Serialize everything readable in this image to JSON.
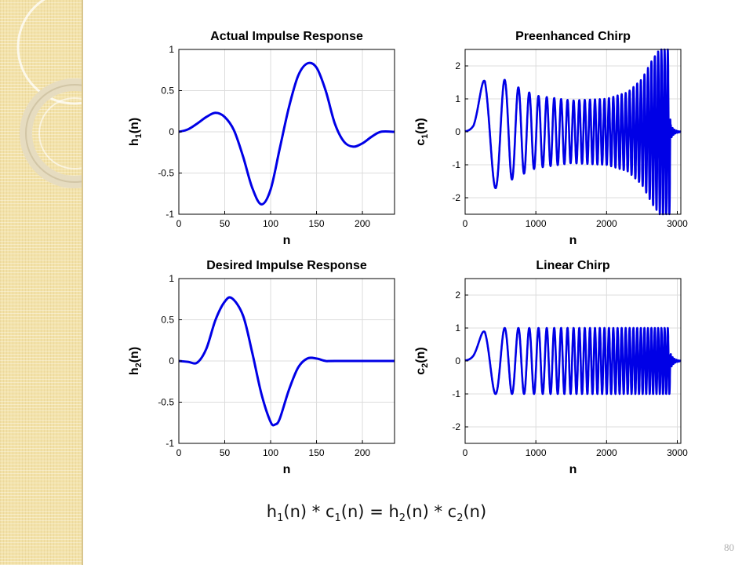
{
  "slide": {
    "page_number": "80"
  },
  "formula": {
    "h1": "h",
    "s1": "1",
    "c1": "c",
    "s2": "1",
    "h2": "h",
    "s3": "2",
    "c2": "c",
    "s4": "2",
    "t_n": "(n)",
    "op_conv": "*",
    "op_eq": "="
  },
  "chart_data": [
    {
      "type": "line",
      "title": "Actual Impulse Response",
      "xlabel": "n",
      "ylabel": "h1(n)",
      "ylabel_base": "h",
      "ylabel_sub": "1",
      "ylabel_tail": "(n)",
      "xlim": [
        0,
        235
      ],
      "ylim": [
        -1,
        1
      ],
      "xticks": [
        0,
        50,
        100,
        150,
        200
      ],
      "yticks": [
        -1,
        -0.5,
        0,
        0.5,
        1
      ],
      "xtick_labels": [
        "0",
        "50",
        "100",
        "150",
        "200"
      ],
      "ytick_labels": [
        "-1",
        "-0.5",
        "0",
        "0.5",
        "1"
      ],
      "grid": true,
      "color": "#0000e6",
      "series": [
        {
          "x": [
            0,
            10,
            20,
            30,
            40,
            50,
            60,
            70,
            80,
            90,
            100,
            110,
            120,
            130,
            140,
            150,
            160,
            170,
            180,
            190,
            200,
            210,
            220,
            235
          ],
          "y": [
            0,
            0.03,
            0.1,
            0.18,
            0.23,
            0.18,
            0.02,
            -0.3,
            -0.68,
            -0.88,
            -0.7,
            -0.2,
            0.3,
            0.68,
            0.83,
            0.78,
            0.5,
            0.1,
            -0.12,
            -0.18,
            -0.14,
            -0.06,
            0,
            0
          ]
        }
      ]
    },
    {
      "type": "line",
      "title": "Preenhanced Chirp",
      "xlabel": "n",
      "ylabel": "c1(n)",
      "ylabel_base": "c",
      "ylabel_sub": "1",
      "ylabel_tail": "(n)",
      "xlim": [
        0,
        3050
      ],
      "ylim": [
        -2.5,
        2.5
      ],
      "xticks": [
        0,
        1000,
        2000,
        3000
      ],
      "yticks": [
        -2,
        -1,
        0,
        1,
        2
      ],
      "xtick_labels": [
        "0",
        "1000",
        "2000",
        "3000"
      ],
      "ytick_labels": [
        "-2",
        "-1",
        "0",
        "1",
        "2"
      ],
      "grid": true,
      "color": "#0000e6",
      "signal": {
        "kind": "chirp",
        "n_end": 2900,
        "tail_end": 3050,
        "envelope": [
          [
            0,
            0.1
          ],
          [
            120,
            0.4
          ],
          [
            280,
            1.75
          ],
          [
            460,
            1.7
          ],
          [
            700,
            1.4
          ],
          [
            1000,
            1.1
          ],
          [
            1500,
            0.95
          ],
          [
            2000,
            1.0
          ],
          [
            2300,
            1.2
          ],
          [
            2500,
            1.6
          ],
          [
            2650,
            2.2
          ],
          [
            2750,
            2.5
          ],
          [
            2900,
            2.5
          ]
        ]
      }
    },
    {
      "type": "line",
      "title": "Desired Impulse Response",
      "xlabel": "n",
      "ylabel": "h2(n)",
      "ylabel_base": "h",
      "ylabel_sub": "2",
      "ylabel_tail": "(n)",
      "xlim": [
        0,
        235
      ],
      "ylim": [
        -1,
        1
      ],
      "xticks": [
        0,
        50,
        100,
        150,
        200
      ],
      "yticks": [
        -1,
        -0.5,
        0,
        0.5,
        1
      ],
      "xtick_labels": [
        "0",
        "50",
        "100",
        "150",
        "200"
      ],
      "ytick_labels": [
        "-1",
        "-0.5",
        "0",
        "0.5",
        "1"
      ],
      "grid": true,
      "color": "#0000e6",
      "series": [
        {
          "x": [
            0,
            10,
            20,
            30,
            40,
            50,
            58,
            70,
            80,
            90,
            100,
            105,
            110,
            120,
            130,
            140,
            150,
            160,
            170,
            235
          ],
          "y": [
            0,
            -0.01,
            -0.02,
            0.15,
            0.5,
            0.72,
            0.76,
            0.55,
            0.1,
            -0.4,
            -0.74,
            -0.77,
            -0.7,
            -0.35,
            -0.08,
            0.03,
            0.03,
            0,
            0,
            0
          ]
        }
      ]
    },
    {
      "type": "line",
      "title": "Linear Chirp",
      "xlabel": "n",
      "ylabel": "c2(n)",
      "ylabel_base": "c",
      "ylabel_sub": "2",
      "ylabel_tail": "(n)",
      "xlim": [
        0,
        3050
      ],
      "ylim": [
        -2.5,
        2.5
      ],
      "xticks": [
        0,
        1000,
        2000,
        3000
      ],
      "yticks": [
        -2,
        -1,
        0,
        1,
        2
      ],
      "xtick_labels": [
        "0",
        "1000",
        "2000",
        "3000"
      ],
      "ytick_labels": [
        "-2",
        "-1",
        "0",
        "1",
        "2"
      ],
      "grid": true,
      "color": "#0000e6",
      "signal": {
        "kind": "chirp",
        "n_end": 2900,
        "tail_end": 3050,
        "envelope": [
          [
            0,
            0.1
          ],
          [
            120,
            0.35
          ],
          [
            280,
            1.0
          ],
          [
            2900,
            1.0
          ]
        ]
      }
    }
  ]
}
